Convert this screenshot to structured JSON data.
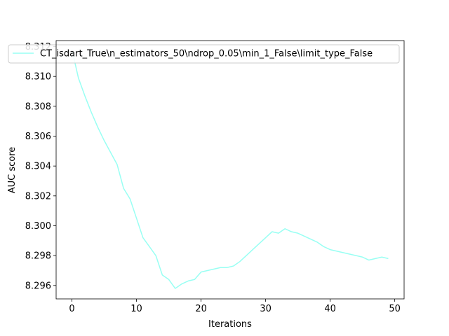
{
  "chart_data": {
    "type": "line",
    "title": "",
    "xlabel": "Iterations",
    "ylabel": "AUC score",
    "xlim": [
      -2.45,
      51.45
    ],
    "ylim": [
      8.2951,
      8.3124
    ],
    "xticks": [
      0,
      10,
      20,
      30,
      40,
      50
    ],
    "yticks": [
      8.296,
      8.298,
      8.3,
      8.302,
      8.304,
      8.306,
      8.308,
      8.31,
      8.312
    ],
    "ytick_labels": [
      "8.296",
      "8.298",
      "8.300",
      "8.302",
      "8.304",
      "8.306",
      "8.308",
      "8.310",
      "8.312"
    ],
    "grid": false,
    "legend": {
      "position": "top",
      "entries": [
        "CT_isdart_True\\n_estimators_50\\ndrop_0.05\\min_1_False\\limit_type_False"
      ]
    },
    "colors": {
      "series": "#99fff3",
      "axis": "#000000"
    },
    "series": [
      {
        "name": "CT_isdart_True\\n_estimators_50\\ndrop_0.05\\min_1_False\\limit_type_False",
        "x": [
          0,
          1,
          2,
          3,
          4,
          5,
          6,
          7,
          8,
          9,
          10,
          11,
          12,
          13,
          14,
          15,
          16,
          17,
          18,
          19,
          20,
          21,
          22,
          23,
          24,
          25,
          26,
          27,
          28,
          29,
          30,
          31,
          32,
          33,
          34,
          35,
          36,
          37,
          38,
          39,
          40,
          41,
          42,
          43,
          44,
          45,
          46,
          47,
          48,
          49
        ],
        "values": [
          8.3118,
          8.3099,
          8.3087,
          8.3076,
          8.3066,
          8.3057,
          8.3049,
          8.3041,
          8.3025,
          8.3018,
          8.3005,
          8.2992,
          8.2986,
          8.298,
          8.2967,
          8.2964,
          8.2958,
          8.2961,
          8.2963,
          8.2964,
          8.2969,
          8.297,
          8.2971,
          8.2972,
          8.2972,
          8.2973,
          8.2976,
          8.298,
          8.2984,
          8.2988,
          8.2992,
          8.2996,
          8.2995,
          8.2998,
          8.2996,
          8.2995,
          8.2993,
          8.2991,
          8.2989,
          8.2986,
          8.2984,
          8.2983,
          8.2982,
          8.2981,
          8.298,
          8.2979,
          8.2977,
          8.2978,
          8.2979,
          8.2978
        ]
      }
    ]
  }
}
